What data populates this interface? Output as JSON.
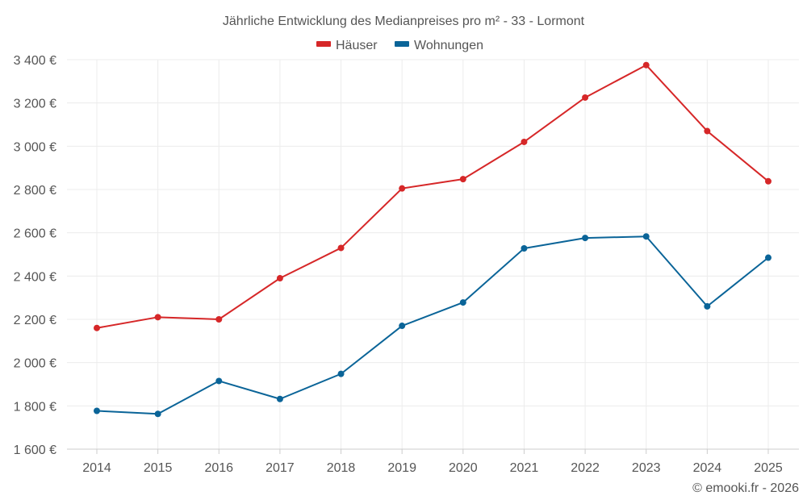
{
  "chart_data": {
    "type": "line",
    "title": "Jährliche Entwicklung des Medianpreises pro m² - 33 - Lormont",
    "categories": [
      "2014",
      "2015",
      "2016",
      "2017",
      "2018",
      "2019",
      "2020",
      "2021",
      "2022",
      "2023",
      "2024",
      "2025"
    ],
    "series": [
      {
        "name": "Häuser",
        "color": "#d62728",
        "values": [
          2160,
          2210,
          2200,
          2390,
          2530,
          2805,
          2848,
          3020,
          3225,
          3375,
          3070,
          2838
        ]
      },
      {
        "name": "Wohnungen",
        "color": "#0a6498",
        "values": [
          1777,
          1763,
          1915,
          1832,
          1948,
          2170,
          2278,
          2528,
          2576,
          2583,
          2260,
          2485
        ]
      }
    ],
    "ylim": [
      1600,
      3400
    ],
    "yticks": [
      1600,
      1800,
      2000,
      2200,
      2400,
      2600,
      2800,
      3000,
      3200,
      3400
    ],
    "ytick_labels": [
      "1 600 €",
      "1 800 €",
      "2 000 €",
      "2 200 €",
      "2 400 €",
      "2 600 €",
      "2 800 €",
      "3 000 €",
      "3 200 €",
      "3 400 €"
    ],
    "xlabel": "",
    "ylabel": "",
    "grid": true,
    "legend_position": "top-center",
    "credit": "© emooki.fr - 2026"
  }
}
